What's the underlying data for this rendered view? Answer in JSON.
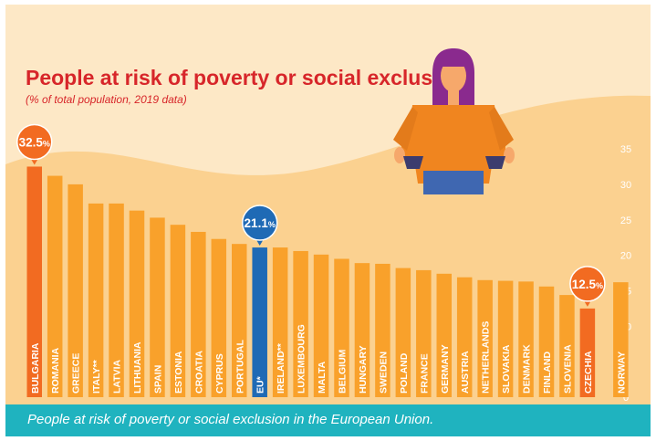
{
  "chart_data": {
    "type": "bar",
    "title": "People at risk of poverty or social exclusion",
    "subtitle": "(% of total population, 2019 data)",
    "xlabel": "",
    "ylabel": "",
    "ylim": [
      0,
      35
    ],
    "yticks": [
      0,
      5,
      10,
      15,
      20,
      25,
      30,
      35
    ],
    "grid": false,
    "categories": [
      "BULGARIA",
      "ROMANIA",
      "GREECE",
      "ITALY**",
      "LATVIA",
      "LITHUANIA",
      "SPAIN",
      "ESTONIA",
      "CROATIA",
      "CYPRUS",
      "PORTUGAL",
      "EU*",
      "IRELAND**",
      "LUXEMBOURG",
      "MALTA",
      "BELGIUM",
      "HUNGARY",
      "SWEDEN",
      "POLAND",
      "FRANCE",
      "GERMANY",
      "AUSTRIA",
      "NETHERLANDS",
      "SLOVAKIA",
      "DENMARK",
      "FINLAND",
      "SLOVENIA",
      "CZECHIA",
      "NORWAY"
    ],
    "values": [
      32.5,
      31.2,
      30.0,
      27.3,
      27.3,
      26.3,
      25.3,
      24.3,
      23.3,
      22.3,
      21.6,
      21.1,
      21.1,
      20.6,
      20.1,
      19.5,
      18.9,
      18.8,
      18.2,
      17.9,
      17.4,
      16.9,
      16.5,
      16.4,
      16.3,
      15.6,
      14.4,
      12.5,
      16.2
    ],
    "highlighted": {
      "BULGARIA": "#f26b21",
      "EU*": "#1f6ab5",
      "CZECHIA": "#f26b21"
    },
    "callouts": [
      {
        "category": "BULGARIA",
        "label": "32.5",
        "suffix": "%",
        "color": "#f26b21"
      },
      {
        "category": "EU*",
        "label": "21.1",
        "suffix": "%",
        "color": "#1f6ab5"
      },
      {
        "category": "CZECHIA",
        "label": "12.5",
        "suffix": "%",
        "color": "#f26b21"
      }
    ],
    "colors": {
      "bar": "#f9a12b",
      "title": "#d7262a",
      "subtitle": "#d7262a",
      "background_top": "#fde8c6",
      "background_wave": "#fbd190",
      "axis_tick": "#ffffff"
    }
  },
  "caption": "People at risk of poverty or social exclusion in the European Union.",
  "illustration": {
    "icon": "person-empty-pockets-icon"
  }
}
